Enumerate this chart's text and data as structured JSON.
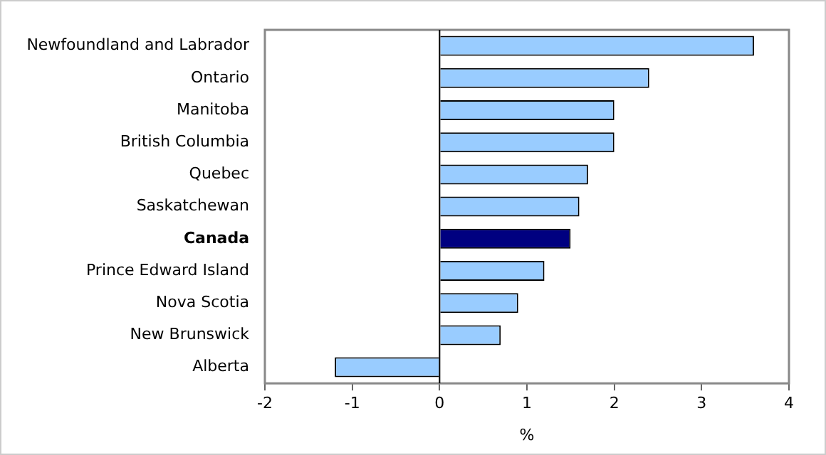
{
  "chart_data": {
    "type": "bar",
    "orientation": "horizontal",
    "xlabel": "%",
    "categories": [
      "Newfoundland and Labrador",
      "Ontario",
      "Manitoba",
      "British Columbia",
      "Quebec",
      "Saskatchewan",
      "Canada",
      "Prince Edward Island",
      "Nova Scotia",
      "New Brunswick",
      "Alberta"
    ],
    "values": [
      3.6,
      2.4,
      2.0,
      2.0,
      1.7,
      1.6,
      1.5,
      1.2,
      0.9,
      0.7,
      -1.2
    ],
    "colors": [
      "#99ccff",
      "#99ccff",
      "#99ccff",
      "#99ccff",
      "#99ccff",
      "#99ccff",
      "#000080",
      "#99ccff",
      "#99ccff",
      "#99ccff",
      "#99ccff"
    ],
    "xlim": [
      -2,
      4
    ],
    "xticks": [
      -2,
      -1,
      0,
      1,
      2,
      3,
      4
    ],
    "legend": false
  }
}
